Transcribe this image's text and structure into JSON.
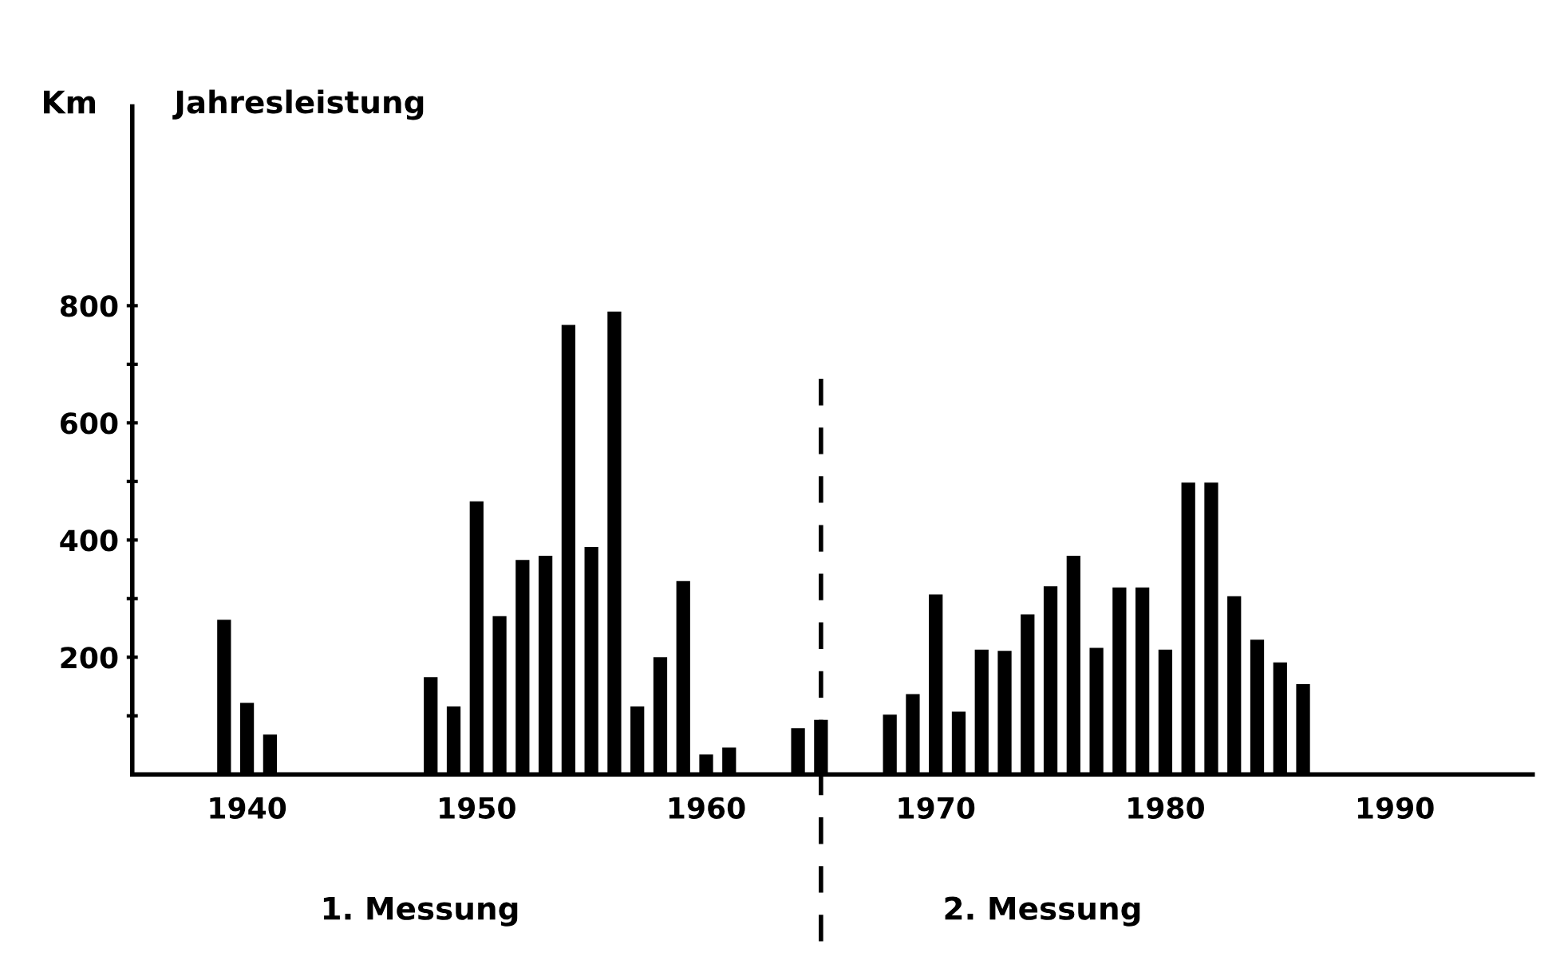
{
  "chart_data": {
    "type": "bar",
    "title": "Jahresleistung",
    "ylabel": "Km",
    "x": [
      1939,
      1940,
      1941,
      1948,
      1949,
      1950,
      1951,
      1952,
      1953,
      1954,
      1955,
      1956,
      1957,
      1958,
      1959,
      1960,
      1961,
      1964,
      1965,
      1968,
      1969,
      1970,
      1971,
      1972,
      1973,
      1974,
      1975,
      1976,
      1977,
      1978,
      1979,
      1980,
      1981,
      1982,
      1983,
      1984,
      1985,
      1986
    ],
    "series": [
      {
        "color": "#000000",
        "values": [
          264,
          122,
          68,
          166,
          116,
          466,
          270,
          366,
          373,
          767,
          388,
          790,
          116,
          200,
          330,
          34,
          46,
          79,
          93,
          102,
          137,
          307,
          107,
          213,
          211,
          273,
          321,
          373,
          216,
          319,
          319,
          213,
          498,
          498,
          304,
          230,
          191,
          154
        ]
      }
    ],
    "xlim": [
      1935,
      1996
    ],
    "xticks": [
      1940,
      1950,
      1960,
      1970,
      1980,
      1990
    ],
    "ylim": [
      0,
      1140
    ],
    "yticks": [
      {
        "value": 100,
        "label": null
      },
      200,
      {
        "value": 300,
        "label": null
      },
      400,
      {
        "value": 500,
        "label": null
      },
      600,
      {
        "value": 700,
        "label": null
      },
      800
    ],
    "ref_lines": [
      {
        "axis": "x",
        "value": 1965,
        "label": null,
        "color": "#000000",
        "line_style": "dashed"
      }
    ],
    "annotations": [
      "1. Messung",
      "2. Messung"
    ],
    "grid": false,
    "legend": false
  }
}
